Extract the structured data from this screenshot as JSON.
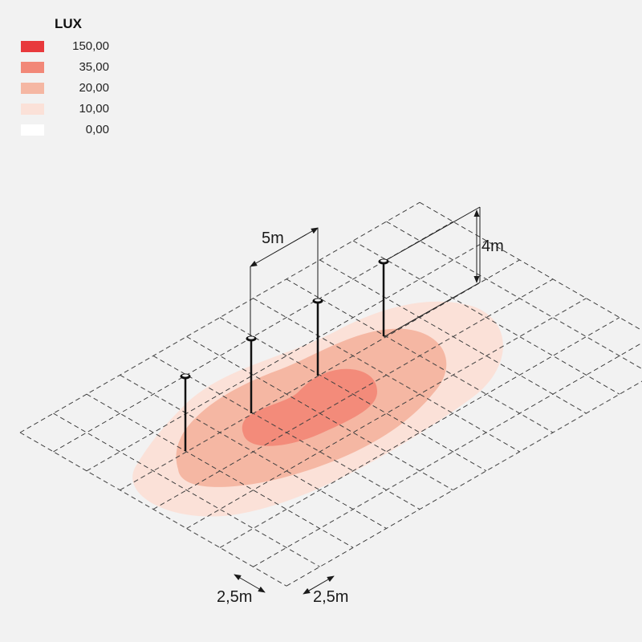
{
  "legend": {
    "title": "LUX",
    "items": [
      {
        "label": "150,00",
        "color": "#e8393c"
      },
      {
        "label": "35,00",
        "color": "#f28878"
      },
      {
        "label": "20,00",
        "color": "#f5b7a3"
      },
      {
        "label": "10,00",
        "color": "#fbe1d8"
      },
      {
        "label": "0,00",
        "color": "#ffffff"
      }
    ]
  },
  "dimensions": {
    "pole_spacing": "5m",
    "mounting_height": "4m",
    "grid_x": "2,5m",
    "grid_y": "2,5m"
  },
  "luminaire_count": 4,
  "icons": [
    "luminaire-head-icon",
    "dimension-arrow-icon"
  ]
}
